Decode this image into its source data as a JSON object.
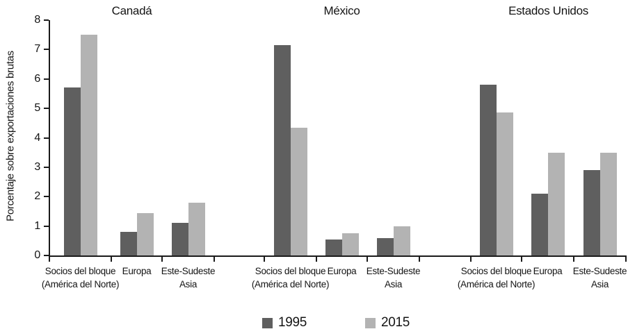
{
  "figure": {
    "background": "#ffffff",
    "axis_color": "#1a1a1a",
    "text_color": "#141414"
  },
  "chart_data": {
    "type": "bar",
    "title": "",
    "ylabel": "Porcentaje sobre exportaciones brutas",
    "xlabel": "",
    "ylim": [
      0,
      8
    ],
    "yticks": [
      0,
      1,
      2,
      3,
      4,
      5,
      6,
      7,
      8
    ],
    "grid": false,
    "legend_position": "bottom",
    "panels": [
      "Canadá",
      "México",
      "Estados Unidos"
    ],
    "categories": [
      "Socios del bloque (América del Norte)",
      "Europa",
      "Este-Sudeste Asia"
    ],
    "category_lines": [
      [
        "Socios del bloque",
        "(América del Norte)"
      ],
      [
        "Europa"
      ],
      [
        "Este-Sudeste",
        "Asia"
      ]
    ],
    "series": [
      {
        "name": "1995",
        "color": "#5f5f5f",
        "values": [
          [
            5.7,
            0.8,
            1.1
          ],
          [
            7.15,
            0.55,
            0.6
          ],
          [
            5.8,
            2.1,
            2.9
          ]
        ]
      },
      {
        "name": "2015",
        "color": "#b3b3b3",
        "values": [
          [
            7.5,
            1.45,
            1.8
          ],
          [
            4.35,
            0.75,
            1.0
          ],
          [
            4.85,
            3.5,
            3.5
          ]
        ]
      }
    ]
  }
}
